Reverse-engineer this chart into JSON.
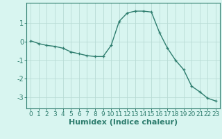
{
  "x": [
    0,
    1,
    2,
    3,
    4,
    5,
    6,
    7,
    8,
    9,
    10,
    11,
    12,
    13,
    14,
    15,
    16,
    17,
    18,
    19,
    20,
    21,
    22,
    23
  ],
  "y": [
    0.05,
    -0.1,
    -0.2,
    -0.25,
    -0.35,
    -0.55,
    -0.65,
    -0.75,
    -0.8,
    -0.8,
    -0.2,
    1.1,
    1.55,
    1.65,
    1.65,
    1.6,
    0.5,
    -0.35,
    -1.0,
    -1.5,
    -2.4,
    -2.7,
    -3.05,
    -3.2
  ],
  "line_color": "#2e7d6e",
  "marker": "+",
  "bg_color": "#d8f5f0",
  "grid_color": "#b8dbd5",
  "axis_color": "#2e7d6e",
  "xlabel": "Humidex (Indice chaleur)",
  "xlim": [
    -0.5,
    23.5
  ],
  "ylim": [
    -3.6,
    2.1
  ],
  "yticks": [
    -3,
    -2,
    -1,
    0,
    1
  ],
  "xticks": [
    0,
    1,
    2,
    3,
    4,
    5,
    6,
    7,
    8,
    9,
    10,
    11,
    12,
    13,
    14,
    15,
    16,
    17,
    18,
    19,
    20,
    21,
    22,
    23
  ],
  "font_color": "#2e7d6e",
  "tick_fontsize": 7,
  "xlabel_fontsize": 8
}
